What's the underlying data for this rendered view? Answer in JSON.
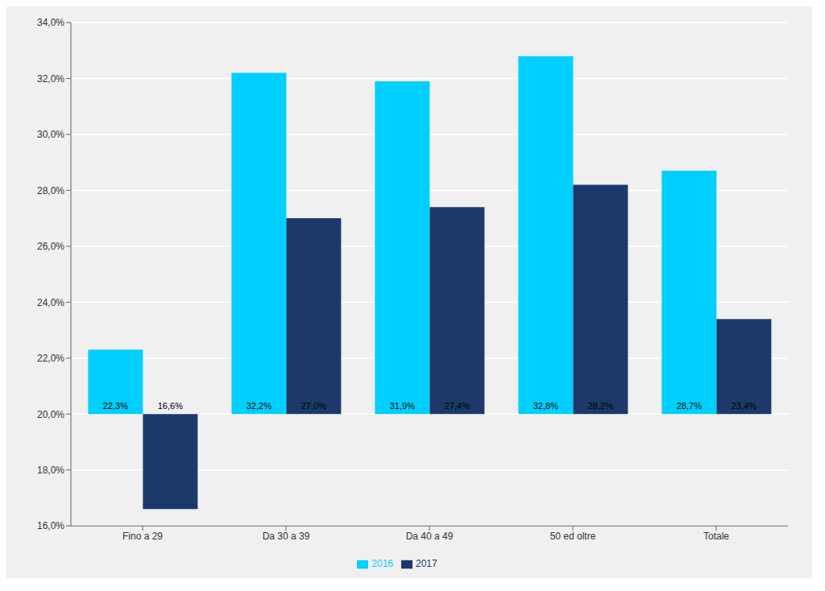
{
  "chart_data": {
    "type": "bar",
    "categories": [
      "Fino a 29",
      "Da 30 a 39",
      "Da 40 a 49",
      "50 ed oltre",
      "Totale"
    ],
    "series": [
      {
        "name": "2016",
        "color": "#00CFFF",
        "values": [
          22.3,
          32.2,
          31.9,
          32.8,
          28.7
        ],
        "value_labels": [
          "22,3%",
          "32,2%",
          "31,9%",
          "32,8%",
          "28,7%"
        ]
      },
      {
        "name": "2017",
        "color": "#1B3A6B",
        "values": [
          16.6,
          27.0,
          27.4,
          28.2,
          23.4
        ],
        "value_labels": [
          "16,6%",
          "27,0%",
          "27,4%",
          "28,2%",
          "23,4%"
        ]
      }
    ],
    "bottom": 20,
    "ylim": [
      16,
      34
    ],
    "yticks": [
      {
        "value": 16,
        "label": "16,0%"
      },
      {
        "value": 18,
        "label": "18,0%"
      },
      {
        "value": 20,
        "label": "20,0%"
      },
      {
        "value": 22,
        "label": "22,0%"
      },
      {
        "value": 24,
        "label": "24,0%"
      },
      {
        "value": 26,
        "label": "26,0%"
      },
      {
        "value": 28,
        "label": "28,0%"
      },
      {
        "value": 30,
        "label": "30,0%"
      },
      {
        "value": 32,
        "label": "32,0%"
      },
      {
        "value": 34,
        "label": "34,0%"
      }
    ],
    "grid": true,
    "legend": "bottom",
    "data_labels": true
  }
}
